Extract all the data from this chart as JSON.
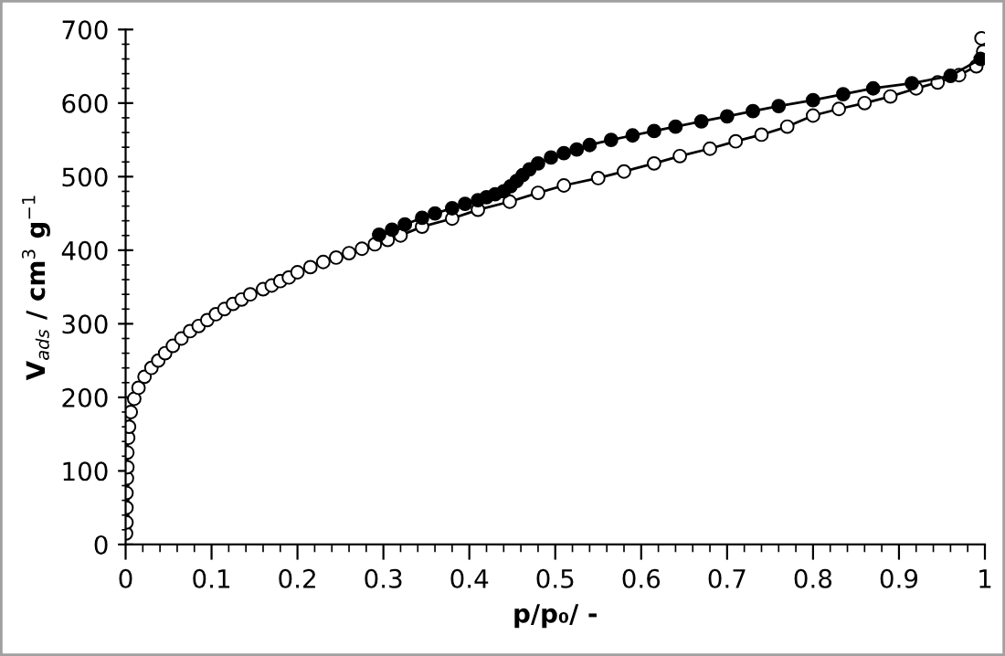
{
  "chart_data": {
    "type": "line",
    "xlabel": "p/p₀/ -",
    "ylabel": "V$_{ads}$ / cm$^{3}$ g$^{−1}$",
    "xlim": [
      0,
      1
    ],
    "xticks": [
      0,
      0.1,
      0.2,
      0.3,
      0.4,
      0.5,
      0.6,
      0.7,
      0.8,
      0.9,
      1
    ],
    "ylim": [
      0,
      700
    ],
    "yticks": [
      0,
      100,
      200,
      300,
      400,
      500,
      600,
      700
    ],
    "grid": false,
    "legend": false,
    "line_style": "solid",
    "series": [
      {
        "color": "#000000",
        "marker": "circle-open",
        "x": [
          0.0005,
          0.001,
          0.001,
          0.001,
          0.0015,
          0.002,
          0.002,
          0.003,
          0.004,
          0.006,
          0.01,
          0.015,
          0.022,
          0.03,
          0.038,
          0.046,
          0.055,
          0.065,
          0.075,
          0.085,
          0.095,
          0.105,
          0.115,
          0.125,
          0.135,
          0.145,
          0.16,
          0.17,
          0.18,
          0.19,
          0.2,
          0.215,
          0.23,
          0.245,
          0.26,
          0.275,
          0.29,
          0.305,
          0.32,
          0.345,
          0.38,
          0.41,
          0.447,
          0.48,
          0.51,
          0.55,
          0.58,
          0.615,
          0.645,
          0.68,
          0.71,
          0.74,
          0.77,
          0.8,
          0.83,
          0.86,
          0.89,
          0.92,
          0.945,
          0.97,
          0.99,
          0.998,
          0.996
        ],
        "values": [
          15,
          30,
          50,
          70,
          90,
          105,
          125,
          145,
          160,
          180,
          198,
          213,
          228,
          240,
          250,
          260,
          270,
          280,
          290,
          297,
          305,
          313,
          320,
          327,
          333,
          340,
          347,
          352,
          358,
          363,
          370,
          377,
          384,
          390,
          396,
          402,
          408,
          414,
          420,
          432,
          443,
          455,
          466,
          478,
          488,
          498,
          507,
          518,
          528,
          538,
          548,
          557,
          568,
          583,
          592,
          600,
          609,
          620,
          628,
          638,
          650,
          670,
          688
        ]
      },
      {
        "color": "#000000",
        "marker": "circle",
        "x": [
          0.995,
          0.96,
          0.915,
          0.87,
          0.835,
          0.8,
          0.76,
          0.73,
          0.7,
          0.67,
          0.64,
          0.615,
          0.59,
          0.565,
          0.54,
          0.525,
          0.51,
          0.495,
          0.48,
          0.47,
          0.462,
          0.455,
          0.448,
          0.44,
          0.43,
          0.42,
          0.41,
          0.395,
          0.38,
          0.36,
          0.345,
          0.325,
          0.31,
          0.295
        ],
        "values": [
          660,
          637,
          627,
          620,
          612,
          604,
          596,
          589,
          582,
          575,
          568,
          562,
          556,
          550,
          543,
          537,
          532,
          526,
          518,
          510,
          502,
          494,
          487,
          480,
          476,
          472,
          468,
          463,
          457,
          450,
          444,
          435,
          428,
          421
        ]
      }
    ]
  }
}
